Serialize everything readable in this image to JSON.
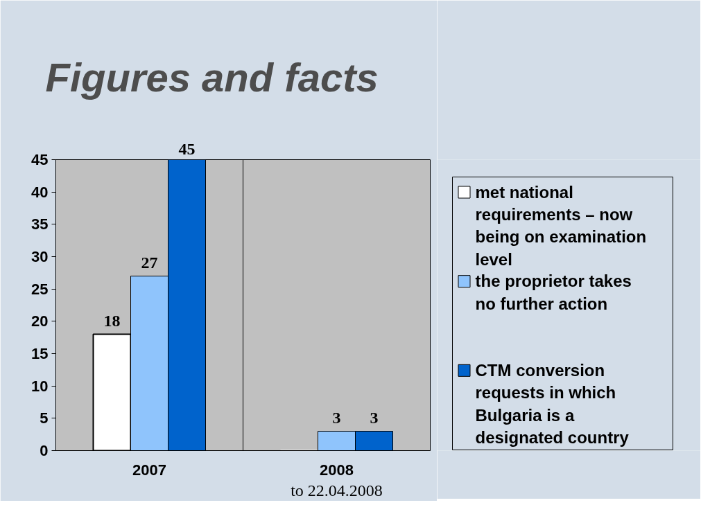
{
  "chart_data": {
    "type": "bar",
    "title": "Figures and facts",
    "categories": [
      "2007",
      "2008"
    ],
    "series": [
      {
        "name": "met national requirements – now being on examination level",
        "color": "#ffffff",
        "values": [
          18,
          0
        ],
        "value_labels": [
          "18",
          null
        ]
      },
      {
        "name": "the proprietor takes no further action",
        "color": "#8fc4fc",
        "values": [
          27,
          3
        ],
        "value_labels": [
          "27",
          "3"
        ]
      },
      {
        "name": "CTM conversion requests in which Bulgaria is a designated country",
        "color": "#0063cc",
        "values": [
          45,
          3
        ],
        "value_labels": [
          "45",
          "3"
        ]
      }
    ],
    "ylim": [
      0,
      45
    ],
    "yticks": [
      0,
      5,
      10,
      15,
      20,
      25,
      30,
      35,
      40,
      45
    ],
    "grid": "x",
    "legend": "right",
    "annotations": [
      "to 22.04.2008"
    ]
  }
}
